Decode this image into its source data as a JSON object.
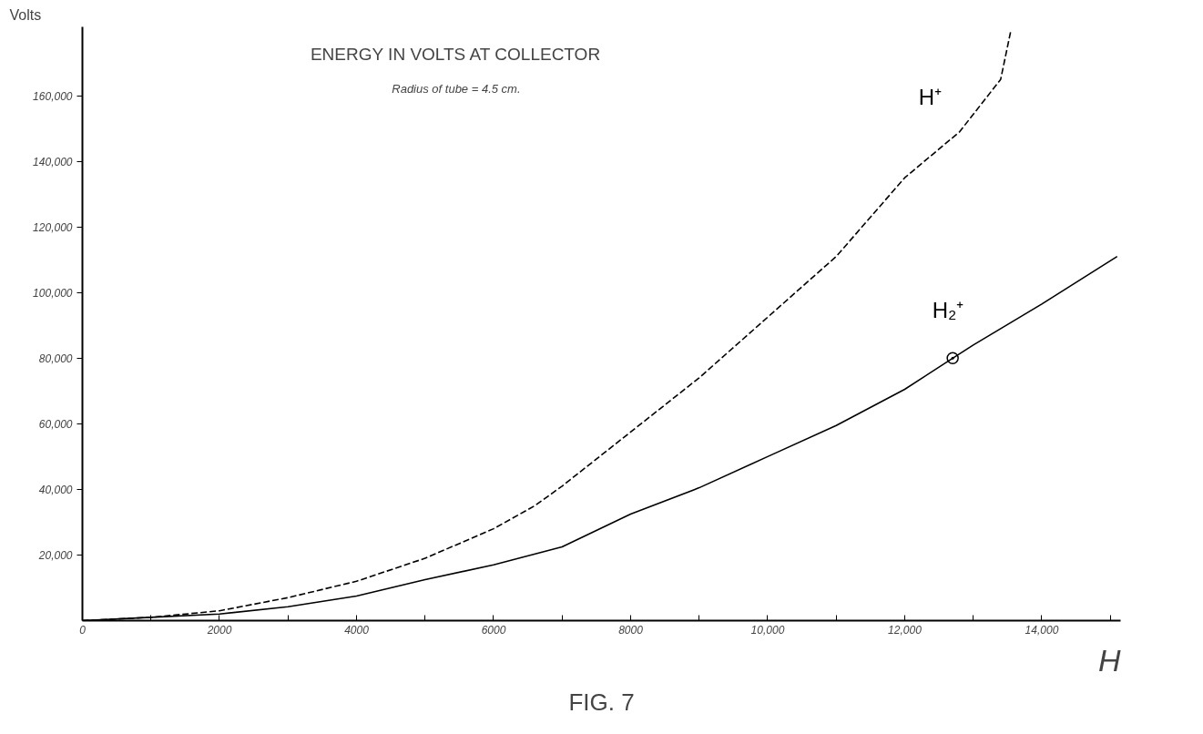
{
  "chart_data": {
    "type": "line",
    "title": "ENERGY IN VOLTS AT COLLECTOR",
    "subtitle": "Radius of tube = 4.5 cm.",
    "xlabel": "H",
    "ylabel": "Volts",
    "annotations": [
      "FIG. 7"
    ],
    "xlim": [
      0,
      15150
    ],
    "ylim": [
      0,
      181000
    ],
    "xticks": [
      0,
      {
        "value": 1000,
        "label": null
      },
      {
        "value": 2000,
        "label": "2000"
      },
      {
        "value": 3000,
        "label": null
      },
      {
        "value": 4000,
        "label": "4000"
      },
      {
        "value": 5000,
        "label": null
      },
      6000,
      {
        "value": 7000,
        "label": null
      },
      {
        "value": 8000,
        "label": "8000"
      },
      {
        "value": 9000,
        "label": null
      },
      {
        "value": 10000,
        "label": "10,000"
      },
      {
        "value": 11000,
        "label": null
      },
      {
        "value": 12000,
        "label": "12,000"
      },
      {
        "value": 13000,
        "label": null
      },
      {
        "value": 14000,
        "label": "14,000"
      },
      {
        "value": 15000,
        "label": null
      }
    ],
    "yticks": [
      {
        "value": 20000,
        "label": "20,000"
      },
      {
        "value": 40000,
        "label": "40,000"
      },
      {
        "value": 60000,
        "label": "60,000"
      },
      {
        "value": 80000,
        "label": "80,000"
      },
      {
        "value": 100000,
        "label": "100,000"
      },
      {
        "value": 120000,
        "label": "120,000"
      },
      {
        "value": 140000,
        "label": "140,000"
      },
      {
        "value": 160000,
        "label": "160,000"
      }
    ],
    "grid": false,
    "legend": false,
    "series": [
      {
        "name": "H⁺",
        "line_style": "dashed",
        "color": "#000000",
        "x": [
          0,
          1000,
          2000,
          3000,
          4000,
          5000,
          6000,
          6600,
          7000,
          8000,
          9000,
          10000,
          11000,
          12000,
          12800,
          13400,
          13550
        ],
        "values": [
          0,
          1000,
          3000,
          7000,
          12000,
          19000,
          28000,
          35000,
          41000,
          57500,
          74000,
          92500,
          111000,
          135000,
          149000,
          165000,
          180000
        ]
      },
      {
        "name": "H₂⁺",
        "line_style": "solid",
        "color": "#000000",
        "x": [
          0,
          1000,
          2000,
          3000,
          4000,
          5000,
          6000,
          7000,
          8000,
          9000,
          10000,
          11000,
          12000,
          12700,
          13000,
          14000,
          15100
        ],
        "values": [
          0,
          1000,
          2000,
          4250,
          7500,
          12500,
          17000,
          22500,
          32500,
          40500,
          50000,
          59500,
          70500,
          80000,
          84000,
          96500,
          111000
        ]
      },
      {
        "type": "scatter",
        "marker": "circle",
        "color": "#000000",
        "x": [
          12700
        ],
        "values": [
          80000
        ]
      }
    ]
  }
}
